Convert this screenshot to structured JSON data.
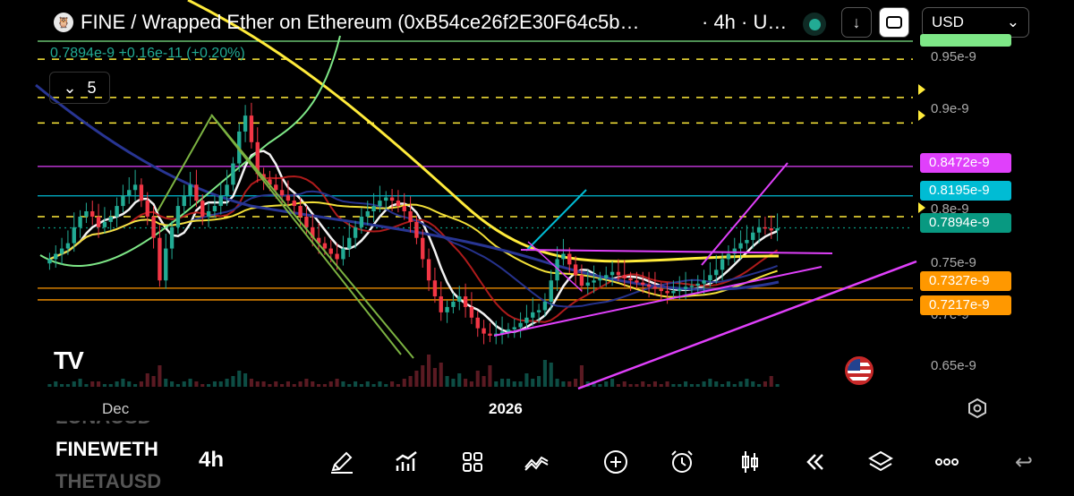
{
  "header": {
    "title": "FINE / Wrapped Ether on Ethereum (0xB54ce26f2E30F64c5b…",
    "interval_text": "· 4h · U…",
    "currency": "USD",
    "currency_caret": "⌄",
    "download_glyph": "↓",
    "logo_glyph": "🦉"
  },
  "legend": {
    "price": "0.7894e-9",
    "change": "+0.16e-11 (+0.20%)",
    "indicator_count": "5",
    "indicator_caret": "⌄"
  },
  "price_axis": {
    "ticks": [
      "0.95e-9",
      "0.9e-9",
      "0.75e-9",
      "0.65e-9"
    ],
    "partial_ticks": [
      "0.8e-9",
      "0.7e-9"
    ],
    "tags": [
      {
        "label": "0.8472e-9",
        "color": "#e040fb"
      },
      {
        "label": "0.8195e-9",
        "color": "#00bcd4"
      },
      {
        "label": "0.7894e-9",
        "color": "#089981"
      },
      {
        "label": "0.7327e-9",
        "color": "#ff9800"
      },
      {
        "label": "0.7217e-9",
        "color": "#ff9800"
      }
    ]
  },
  "time_axis": {
    "labels": [
      {
        "label": "Dec",
        "bold": false
      },
      {
        "label": "2026",
        "bold": true
      }
    ]
  },
  "watermark": "TV",
  "watchlist": {
    "items": [
      "LUNAUSD",
      "FINEWETH",
      "THETAUSD"
    ],
    "interval": "4h"
  },
  "toolbar": {
    "items": [
      "drawing-tool",
      "indicators",
      "layouts",
      "trend-line",
      "add",
      "alert",
      "chart-type",
      "replay",
      "layers",
      "more"
    ],
    "back_glyph": "↩"
  },
  "chart_data": {
    "type": "candlestick",
    "symbol": "FINE / WETH",
    "interval": "4h",
    "last_price": "0.7894e-9",
    "ylim": [
      6.4e-10,
      9.7e-10
    ],
    "x_labels": [
      "Dec",
      "2026"
    ],
    "closes": [
      0.76,
      0.765,
      0.77,
      0.775,
      0.79,
      0.8,
      0.805,
      0.8,
      0.79,
      0.795,
      0.8,
      0.81,
      0.82,
      0.825,
      0.83,
      0.815,
      0.8,
      0.78,
      0.74,
      0.77,
      0.79,
      0.81,
      0.82,
      0.83,
      0.815,
      0.8,
      0.805,
      0.81,
      0.82,
      0.83,
      0.85,
      0.88,
      0.895,
      0.87,
      0.84,
      0.835,
      0.83,
      0.825,
      0.82,
      0.815,
      0.81,
      0.8,
      0.79,
      0.78,
      0.775,
      0.77,
      0.765,
      0.76,
      0.77,
      0.78,
      0.79,
      0.8,
      0.805,
      0.81,
      0.815,
      0.818,
      0.815,
      0.81,
      0.805,
      0.795,
      0.78,
      0.76,
      0.74,
      0.725,
      0.71,
      0.715,
      0.72,
      0.725,
      0.715,
      0.705,
      0.695,
      0.69,
      0.688,
      0.69,
      0.692,
      0.694,
      0.696,
      0.7,
      0.705,
      0.71,
      0.712,
      0.72,
      0.74,
      0.76,
      0.765,
      0.755,
      0.745,
      0.735,
      0.738,
      0.74,
      0.742,
      0.745,
      0.748,
      0.745,
      0.742,
      0.74,
      0.738,
      0.736,
      0.734,
      0.732,
      0.73,
      0.728,
      0.73,
      0.732,
      0.734,
      0.735,
      0.737,
      0.74,
      0.745,
      0.75,
      0.76,
      0.765,
      0.77,
      0.775,
      0.778,
      0.785,
      0.79,
      0.789,
      0.787,
      0.789
    ],
    "volumes": [
      1,
      2,
      1,
      1,
      2,
      3,
      1,
      2,
      2,
      1,
      1,
      2,
      3,
      2,
      1,
      2,
      5,
      4,
      8,
      3,
      2,
      1,
      2,
      3,
      2,
      1,
      1,
      2,
      2,
      3,
      4,
      6,
      5,
      3,
      2,
      2,
      1,
      2,
      1,
      2,
      1,
      2,
      3,
      2,
      1,
      1,
      2,
      3,
      2,
      1,
      2,
      1,
      2,
      1,
      2,
      1,
      2,
      1,
      3,
      4,
      6,
      8,
      12,
      7,
      9,
      4,
      3,
      5,
      3,
      2,
      6,
      4,
      8,
      2,
      3,
      3,
      2,
      2,
      5,
      3,
      4,
      10,
      9,
      3,
      2,
      2,
      3,
      8,
      2,
      2,
      1,
      2,
      3,
      1,
      2,
      1,
      1,
      2,
      1,
      2,
      1,
      2,
      1,
      1,
      2,
      1,
      1,
      2,
      3,
      2,
      1,
      2,
      1,
      2,
      3,
      2,
      1,
      2,
      4,
      1
    ],
    "levels": [
      {
        "price": 0.8472,
        "color": "#e040fb"
      },
      {
        "price": 0.8195,
        "color": "#00bcd4"
      },
      {
        "price": 0.7327,
        "color": "#ff9800"
      },
      {
        "price": 0.7217,
        "color": "#ff9800"
      },
      {
        "price": 0.7894,
        "color": "#089981",
        "dotted": true
      }
    ],
    "dashed_levels": [
      0.948,
      0.912,
      0.888,
      0.8
    ],
    "moving_averages": [
      {
        "name": "MA fast",
        "color": "#ffffff"
      },
      {
        "name": "MA mid",
        "color": "#b71c1c"
      },
      {
        "name": "MA slow",
        "color": "#283593"
      },
      {
        "name": "MA long",
        "color": "#ffeb3b"
      },
      {
        "name": "MA curve",
        "color": "#7ee787"
      }
    ],
    "grid": false
  }
}
